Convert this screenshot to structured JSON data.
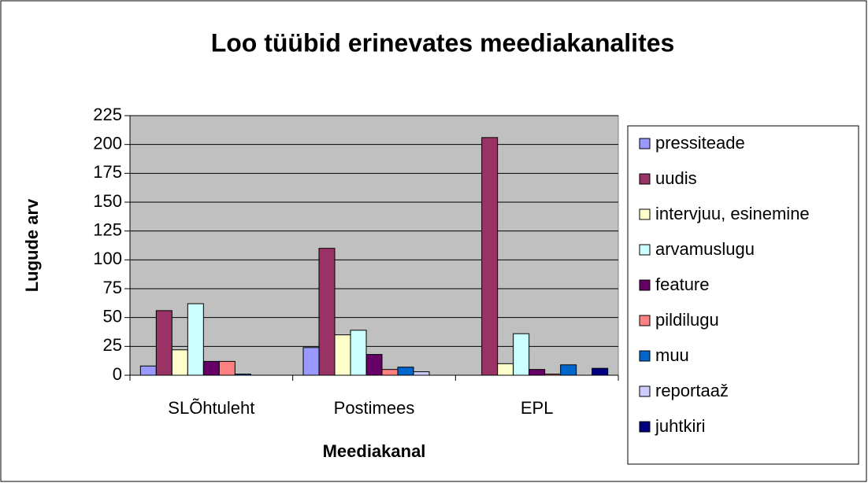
{
  "chart_data": {
    "type": "bar",
    "title": "Loo tüübid erinevates meediakanalites",
    "x_label": "Meediakanal",
    "y_label": "Lugude arv",
    "categories": [
      "SLÕhtuleht",
      "Postimees",
      "EPL"
    ],
    "series": [
      {
        "name": "pressiteade",
        "color": "#9999ff",
        "values": [
          8,
          24,
          0
        ]
      },
      {
        "name": "uudis",
        "color": "#993366",
        "values": [
          56,
          110,
          206
        ]
      },
      {
        "name": "intervjuu, esinemine",
        "color": "#ffffcc",
        "values": [
          22,
          35,
          10
        ]
      },
      {
        "name": "arvamuslugu",
        "color": "#ccffff",
        "values": [
          62,
          39,
          36
        ]
      },
      {
        "name": "feature",
        "color": "#660066",
        "values": [
          12,
          18,
          5
        ]
      },
      {
        "name": "pildilugu",
        "color": "#ff8080",
        "values": [
          12,
          5,
          1
        ]
      },
      {
        "name": "muu",
        "color": "#0066cc",
        "values": [
          1,
          7,
          9
        ]
      },
      {
        "name": "reportaaž",
        "color": "#ccccff",
        "values": [
          0,
          3,
          0
        ]
      },
      {
        "name": "juhtkiri",
        "color": "#000080",
        "values": [
          0,
          0,
          6
        ]
      }
    ],
    "ylim": [
      0,
      225
    ],
    "yticks": [
      0,
      25,
      50,
      75,
      100,
      125,
      150,
      175,
      200,
      225
    ],
    "grid": true,
    "legend": "right"
  }
}
